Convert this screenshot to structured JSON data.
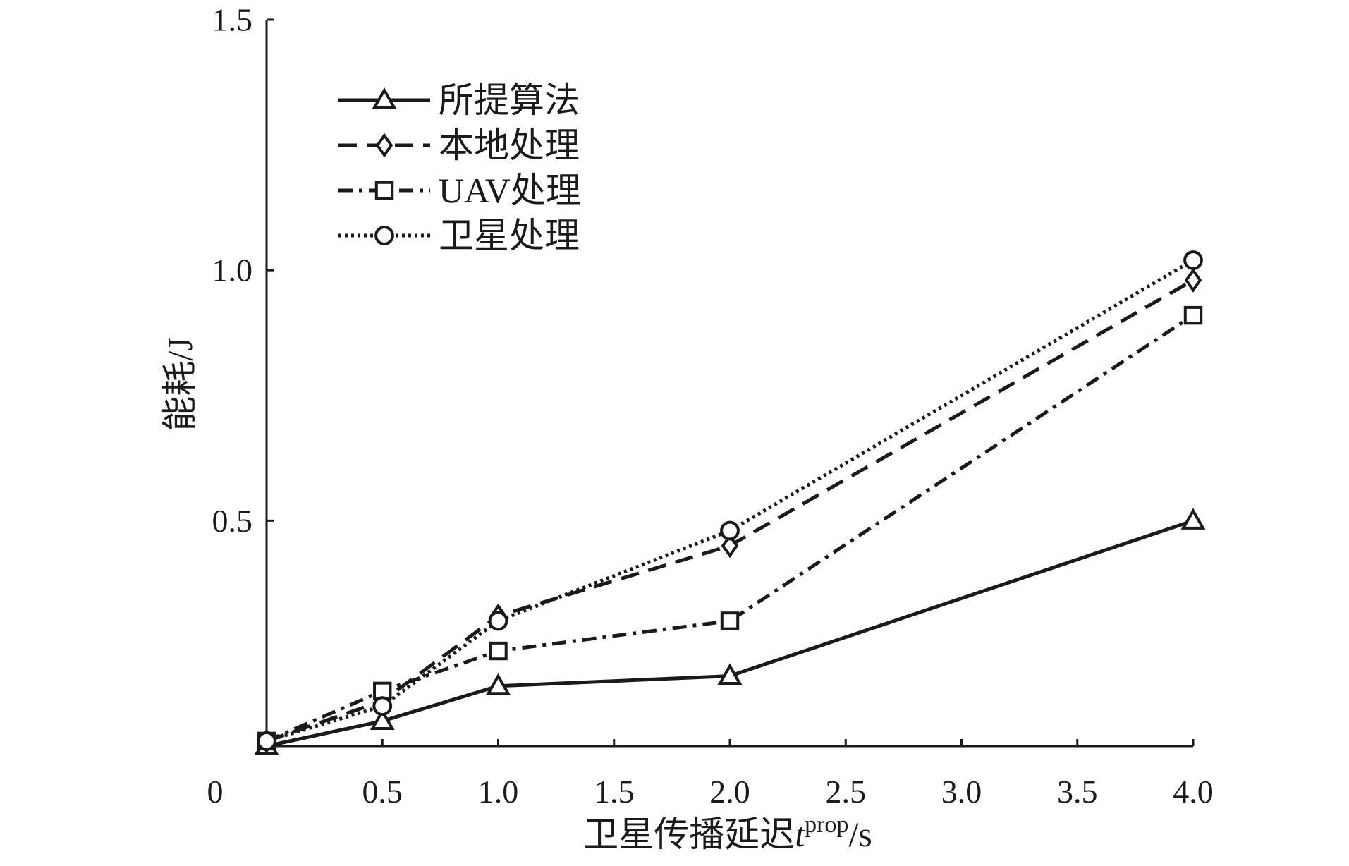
{
  "chart_data": {
    "type": "line",
    "title": "",
    "xlabel": "卫星传播延迟",
    "xlabel_var": "t",
    "xlabel_sup": "prop",
    "xlabel_unit": "/s",
    "ylabel": "能耗/J",
    "x_ticks": [
      "0",
      "0.5",
      "1.0",
      "1.5",
      "2.0",
      "2.5",
      "3.0",
      "3.5",
      "4.0"
    ],
    "x_tick_values": [
      0,
      0.5,
      1.0,
      1.5,
      2.0,
      2.5,
      3.0,
      3.5,
      4.0
    ],
    "y_ticks": [
      "0.5",
      "1.0",
      "1.5"
    ],
    "y_tick_values": [
      0.5,
      1.0,
      1.5
    ],
    "xlim": [
      0,
      4.0
    ],
    "ylim": [
      0.05,
      1.5
    ],
    "grid": false,
    "legend_position": "top-left",
    "color": "#1a1a1a",
    "series": [
      {
        "name": "所提算法",
        "marker": "triangle",
        "dash": "solid",
        "x": [
          0,
          0.5,
          1.0,
          2.0,
          4.0
        ],
        "y": [
          0.05,
          0.1,
          0.17,
          0.19,
          0.5
        ]
      },
      {
        "name": "本地处理",
        "marker": "diamond",
        "dash": "dashed",
        "x": [
          0,
          0.5,
          1.0,
          2.0,
          4.0
        ],
        "y": [
          0.06,
          0.14,
          0.31,
          0.45,
          0.98
        ]
      },
      {
        "name": "UAV处理",
        "marker": "square",
        "dash": "dashdot",
        "x": [
          0,
          0.5,
          1.0,
          2.0,
          4.0
        ],
        "y": [
          0.06,
          0.16,
          0.24,
          0.3,
          0.91
        ]
      },
      {
        "name": "卫星处理",
        "marker": "circle",
        "dash": "dotted",
        "x": [
          0,
          0.5,
          1.0,
          2.0,
          4.0
        ],
        "y": [
          0.06,
          0.13,
          0.3,
          0.48,
          1.02
        ]
      }
    ]
  }
}
